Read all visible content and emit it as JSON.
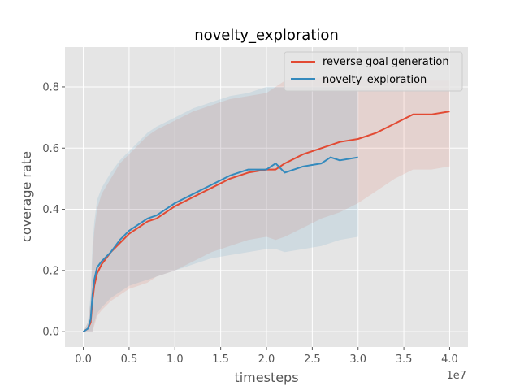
{
  "chart_data": {
    "type": "line",
    "title": "novelty_exploration",
    "xlabel": "timesteps",
    "ylabel": "coverage rate",
    "x_offset_label": "1e7",
    "xlim": [
      -2000000,
      42000000
    ],
    "ylim": [
      -0.05,
      0.93
    ],
    "x_ticks": [
      0,
      5000000,
      10000000,
      15000000,
      20000000,
      25000000,
      30000000,
      35000000,
      40000000
    ],
    "x_tick_labels": [
      "0.0",
      "0.5",
      "1.0",
      "1.5",
      "2.0",
      "2.5",
      "3.0",
      "3.5",
      "4.0"
    ],
    "y_ticks": [
      0.0,
      0.2,
      0.4,
      0.6,
      0.8
    ],
    "y_tick_labels": [
      "0.0",
      "0.2",
      "0.4",
      "0.6",
      "0.8"
    ],
    "grid": true,
    "legend_position": "top-right",
    "background_color": "#e5e5e5",
    "series": [
      {
        "name": "reverse goal generation",
        "color": "#e24a33",
        "x": [
          0,
          500000,
          800000,
          1000000,
          1200000,
          1500000,
          2000000,
          3000000,
          4000000,
          5000000,
          6000000,
          7000000,
          8000000,
          10000000,
          12000000,
          14000000,
          16000000,
          18000000,
          20000000,
          21000000,
          22000000,
          24000000,
          26000000,
          28000000,
          30000000,
          32000000,
          34000000,
          36000000,
          38000000,
          40000000
        ],
        "y": [
          0.0,
          0.01,
          0.03,
          0.1,
          0.15,
          0.19,
          0.22,
          0.26,
          0.29,
          0.32,
          0.34,
          0.36,
          0.37,
          0.41,
          0.44,
          0.47,
          0.5,
          0.52,
          0.53,
          0.53,
          0.55,
          0.58,
          0.6,
          0.62,
          0.63,
          0.65,
          0.68,
          0.71,
          0.71,
          0.72
        ],
        "band_upper": [
          0.0,
          0.03,
          0.1,
          0.25,
          0.33,
          0.4,
          0.45,
          0.5,
          0.55,
          0.58,
          0.61,
          0.64,
          0.66,
          0.69,
          0.72,
          0.74,
          0.76,
          0.77,
          0.78,
          0.8,
          0.82,
          0.83,
          0.83,
          0.82,
          0.82,
          0.82,
          0.82,
          0.82,
          0.82,
          0.82
        ],
        "band_lower": [
          0.0,
          0.0,
          0.0,
          0.0,
          0.02,
          0.05,
          0.07,
          0.1,
          0.12,
          0.14,
          0.15,
          0.16,
          0.18,
          0.2,
          0.23,
          0.26,
          0.28,
          0.3,
          0.31,
          0.3,
          0.31,
          0.34,
          0.37,
          0.39,
          0.42,
          0.46,
          0.5,
          0.53,
          0.53,
          0.54
        ]
      },
      {
        "name": "novelty_exploration",
        "color": "#348abd",
        "x": [
          0,
          500000,
          800000,
          1000000,
          1200000,
          1500000,
          2000000,
          3000000,
          4000000,
          5000000,
          6000000,
          7000000,
          8000000,
          10000000,
          12000000,
          14000000,
          16000000,
          18000000,
          20000000,
          21000000,
          22000000,
          24000000,
          26000000,
          27000000,
          28000000,
          30000000
        ],
        "y": [
          0.0,
          0.01,
          0.04,
          0.12,
          0.17,
          0.21,
          0.23,
          0.26,
          0.3,
          0.33,
          0.35,
          0.37,
          0.38,
          0.42,
          0.45,
          0.48,
          0.51,
          0.53,
          0.53,
          0.55,
          0.52,
          0.54,
          0.55,
          0.57,
          0.56,
          0.57
        ],
        "band_upper": [
          0.0,
          0.03,
          0.12,
          0.28,
          0.36,
          0.43,
          0.47,
          0.52,
          0.56,
          0.59,
          0.62,
          0.65,
          0.67,
          0.7,
          0.73,
          0.75,
          0.77,
          0.78,
          0.8,
          0.8,
          0.8,
          0.8,
          0.8,
          0.8,
          0.8,
          0.8
        ],
        "band_lower": [
          0.0,
          0.0,
          0.0,
          0.0,
          0.03,
          0.06,
          0.08,
          0.11,
          0.13,
          0.15,
          0.16,
          0.17,
          0.18,
          0.2,
          0.22,
          0.24,
          0.25,
          0.26,
          0.27,
          0.27,
          0.26,
          0.27,
          0.28,
          0.29,
          0.3,
          0.31
        ]
      }
    ]
  }
}
